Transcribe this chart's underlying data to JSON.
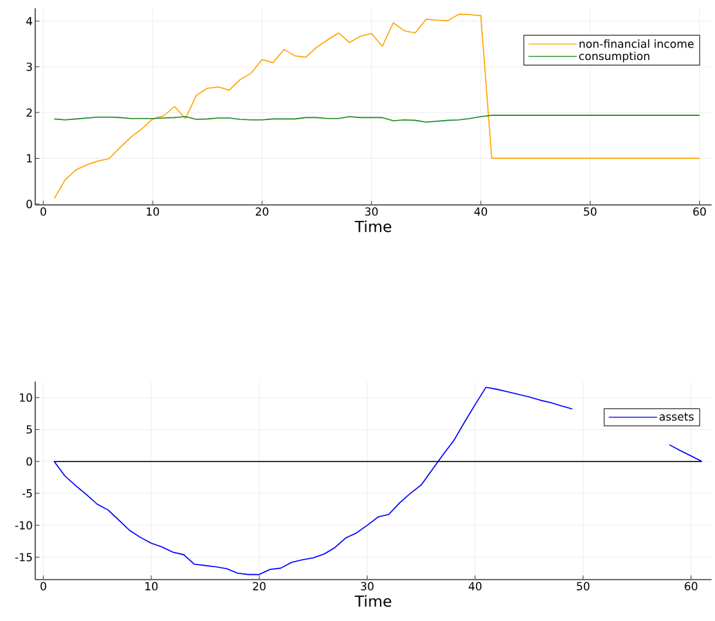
{
  "chart_data": [
    {
      "type": "line",
      "xlabel": "Time",
      "x": [
        1,
        2,
        3,
        4,
        5,
        6,
        7,
        8,
        9,
        10,
        11,
        12,
        13,
        14,
        15,
        16,
        17,
        18,
        19,
        20,
        21,
        22,
        23,
        24,
        25,
        26,
        27,
        28,
        29,
        30,
        31,
        32,
        33,
        34,
        35,
        36,
        37,
        38,
        39,
        40,
        41,
        42,
        43,
        44,
        45,
        46,
        47,
        48,
        49,
        50,
        51,
        52,
        53,
        54,
        55,
        56,
        57,
        58,
        59,
        60
      ],
      "series": [
        {
          "name": "non-financial income",
          "color": "#ffa500",
          "values": [
            0.12,
            0.53,
            0.75,
            0.86,
            0.94,
            0.99,
            1.23,
            1.46,
            1.64,
            1.86,
            1.93,
            2.13,
            1.87,
            2.38,
            2.53,
            2.56,
            2.49,
            2.72,
            2.86,
            3.16,
            3.09,
            3.38,
            3.24,
            3.21,
            3.43,
            3.59,
            3.74,
            3.53,
            3.67,
            3.73,
            3.45,
            3.96,
            3.79,
            3.74,
            4.04,
            4.02,
            4.01,
            4.15,
            4.14,
            4.12,
            1.0,
            1.0,
            1.0,
            1.0,
            1.0,
            1.0,
            1.0,
            1.0,
            1.0,
            1.0,
            1.0,
            1.0,
            1.0,
            1.0,
            1.0,
            1.0,
            1.0,
            1.0,
            1.0,
            1.0
          ]
        },
        {
          "name": "consumption",
          "color": "#228b22",
          "values": [
            1.86,
            1.84,
            1.86,
            1.88,
            1.9,
            1.9,
            1.89,
            1.87,
            1.87,
            1.87,
            1.88,
            1.89,
            1.91,
            1.85,
            1.86,
            1.88,
            1.88,
            1.85,
            1.84,
            1.84,
            1.86,
            1.86,
            1.86,
            1.89,
            1.89,
            1.87,
            1.87,
            1.91,
            1.89,
            1.89,
            1.89,
            1.82,
            1.84,
            1.83,
            1.79,
            1.81,
            1.83,
            1.84,
            1.87,
            1.91,
            1.94,
            1.94,
            1.94,
            1.94,
            1.94,
            1.94,
            1.94,
            1.94,
            1.94,
            1.94,
            1.94,
            1.94,
            1.94,
            1.94,
            1.94,
            1.94,
            1.94,
            1.94,
            1.94,
            1.94
          ]
        }
      ],
      "xlim": [
        -0.74,
        61.1
      ],
      "ylim": [
        -0.02,
        4.28
      ],
      "xticks": [
        0,
        10,
        20,
        30,
        40,
        50,
        60
      ],
      "yticks": [
        0,
        1,
        2,
        3,
        4
      ],
      "grid": true,
      "legend": "top right"
    },
    {
      "type": "line",
      "xlabel": "Time",
      "x": [
        1,
        2,
        3,
        4,
        5,
        6,
        7,
        8,
        9,
        10,
        11,
        12,
        13,
        14,
        15,
        16,
        17,
        18,
        19,
        20,
        21,
        22,
        23,
        24,
        25,
        26,
        27,
        28,
        29,
        30,
        31,
        32,
        33,
        34,
        35,
        36,
        37,
        38,
        39,
        40,
        41,
        42,
        43,
        44,
        45,
        46,
        47,
        48,
        49,
        50,
        51,
        52,
        53,
        54,
        55,
        56,
        57,
        58,
        59,
        60,
        61
      ],
      "series": [
        {
          "name": "assets",
          "color": "#0000ff",
          "values": [
            0,
            -2.27,
            -3.8,
            -5.2,
            -6.7,
            -7.6,
            -9.2,
            -10.8,
            -11.9,
            -12.8,
            -13.4,
            -14.2,
            -14.6,
            -16.1,
            -16.3,
            -16.5,
            -16.8,
            -17.5,
            -17.7,
            -17.7,
            -16.9,
            -16.7,
            -15.8,
            -15.4,
            -15.1,
            -14.5,
            -13.5,
            -12.0,
            -11.2,
            -10.0,
            -8.7,
            -8.3,
            -6.5,
            -5.0,
            -3.7,
            -1.35,
            1.0,
            3.2,
            6.1,
            8.9,
            11.6,
            11.3,
            10.9,
            10.5,
            10.1,
            9.6,
            9.2,
            8.7,
            8.2,
            null,
            null,
            null,
            null,
            null,
            null,
            null,
            null,
            2.6,
            1.7,
            0.86,
            0
          ]
        }
      ],
      "ref_lines": [
        {
          "axis": "y",
          "value": 0,
          "color": "#000000"
        }
      ],
      "xlim": [
        -0.75,
        61.9
      ],
      "ylim": [
        -18.5,
        12.5
      ],
      "xticks": [
        0,
        10,
        20,
        30,
        40,
        50,
        60
      ],
      "yticks": [
        -15,
        -10,
        -5,
        0,
        5,
        10
      ],
      "grid": true,
      "legend": "top right"
    }
  ]
}
